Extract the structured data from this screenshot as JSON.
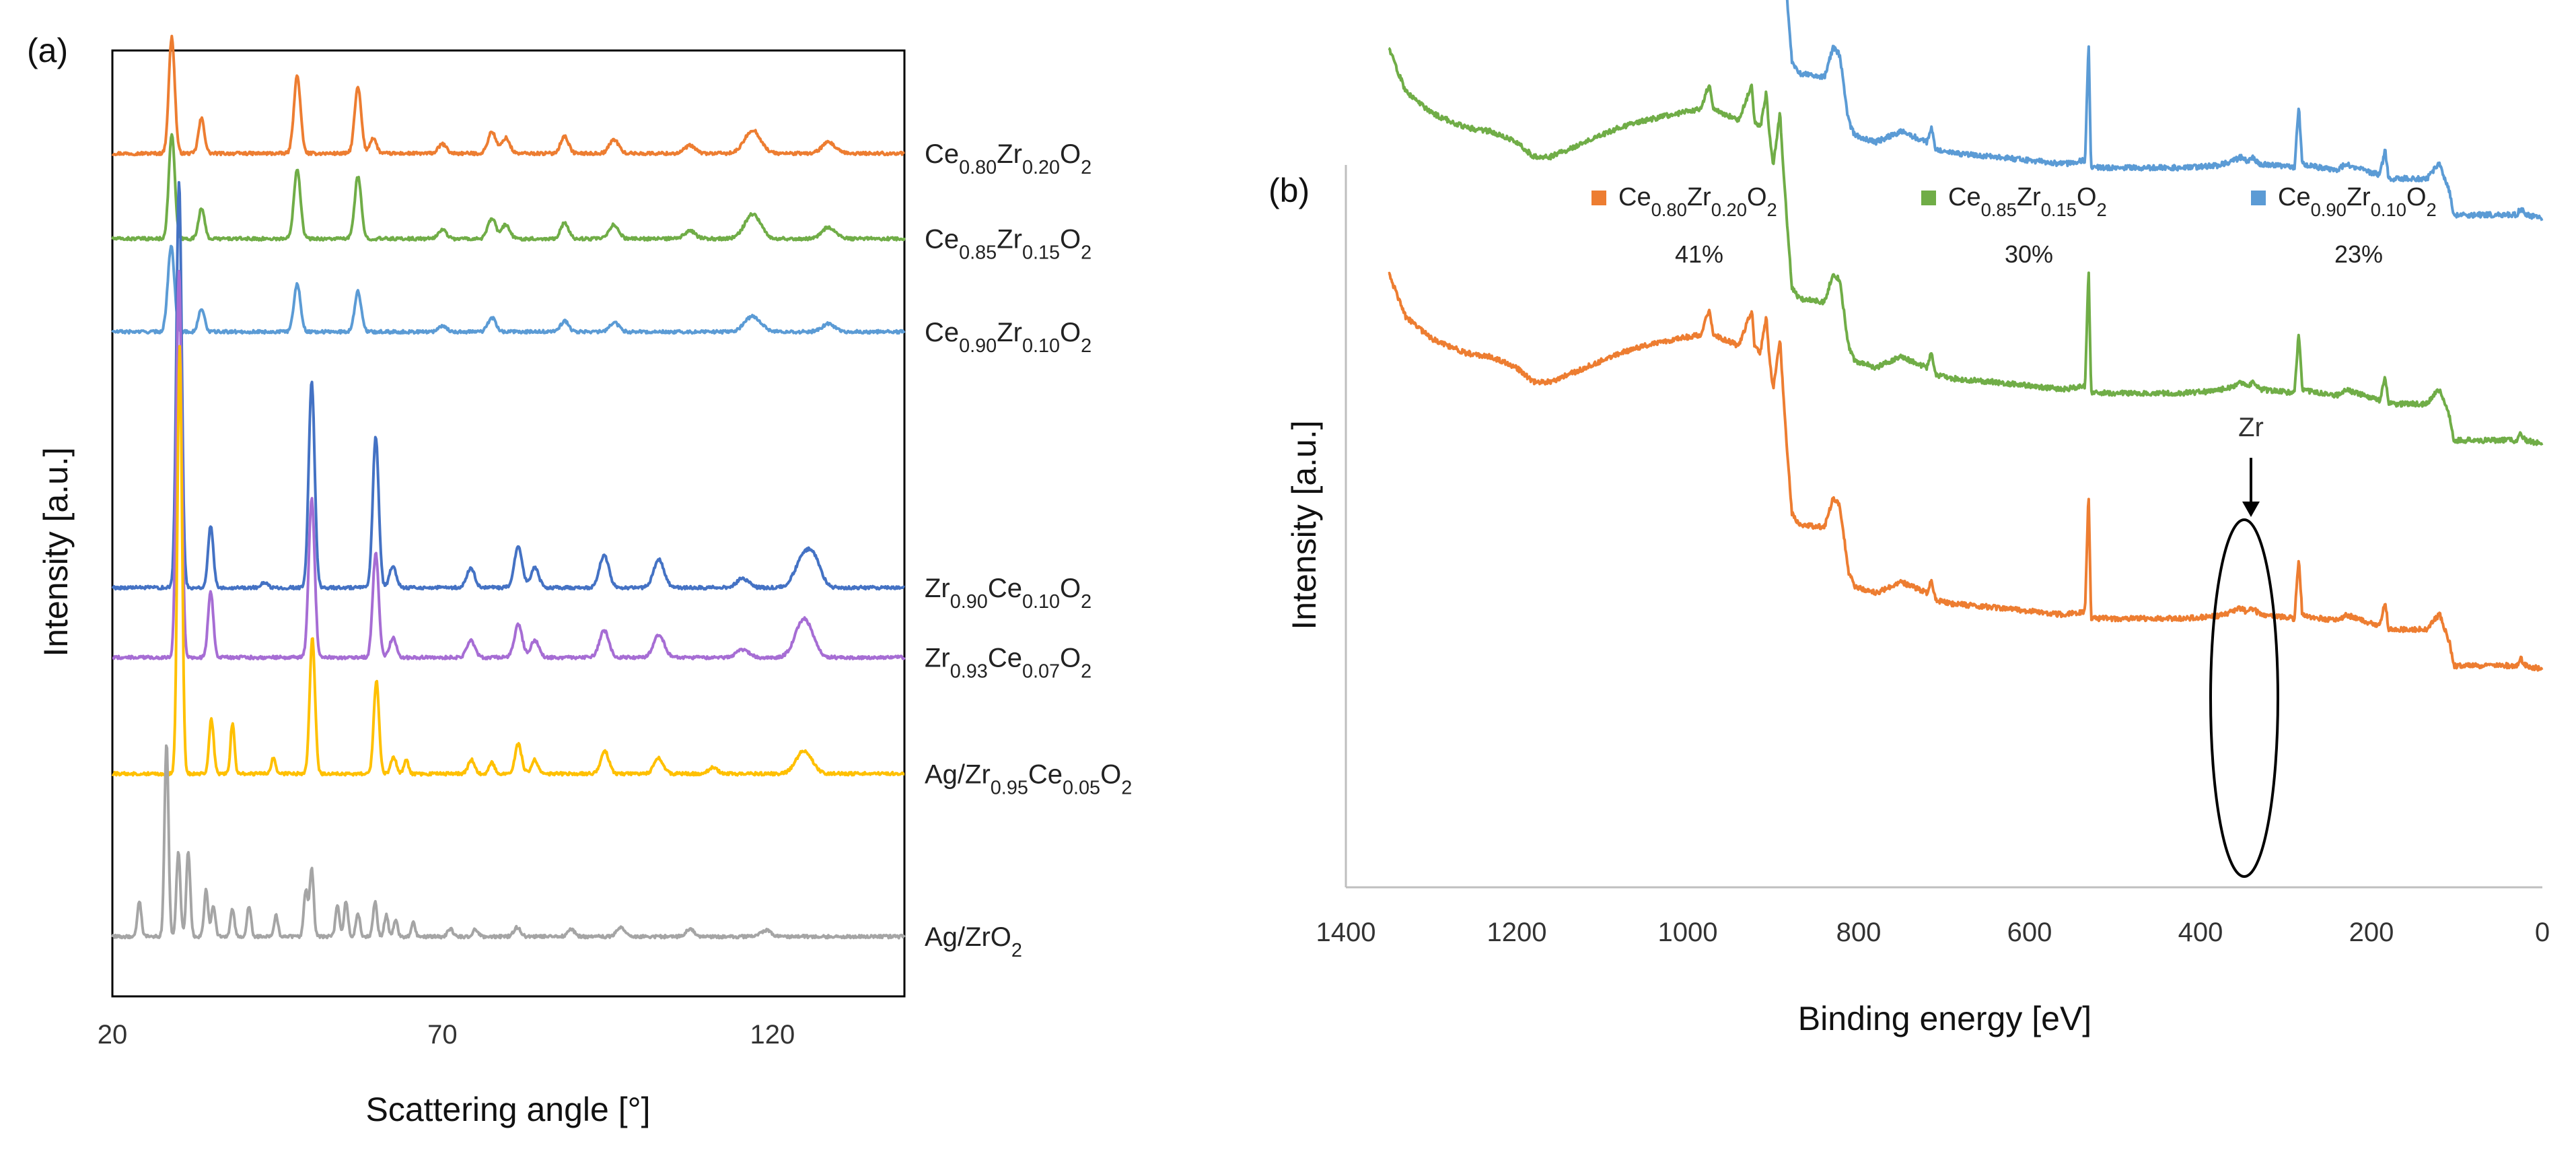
{
  "figure": {
    "panel_a_tag": "(a)",
    "panel_b_tag": "(b)"
  },
  "chart_data": [
    {
      "type": "line",
      "panel": "(a)",
      "title": "",
      "xlabel": "Scattering angle [°]",
      "ylabel": "Intensity [a.u.]",
      "xlim": [
        20,
        140
      ],
      "xticks": [
        "20",
        "70",
        "120"
      ],
      "yticks": [],
      "grid": false,
      "offset_traces": true,
      "series": [
        {
          "name": "Ce0.80Zr0.20O2",
          "label_parts": [
            [
              "Ce",
              ""
            ],
            [
              "0.80",
              "sub"
            ],
            [
              "Zr",
              ""
            ],
            [
              "0.20",
              "sub"
            ],
            [
              "O",
              ""
            ],
            [
              "2",
              "sub"
            ]
          ],
          "color": "#ED7D31",
          "baseline": 0.915,
          "peaks": [
            [
              29.0,
              0.15,
              0.45
            ],
            [
              33.5,
              0.045,
              0.45
            ],
            [
              48.0,
              0.1,
              0.5
            ],
            [
              57.2,
              0.085,
              0.5
            ],
            [
              59.5,
              0.02,
              0.5
            ],
            [
              70.0,
              0.012,
              0.6
            ],
            [
              77.5,
              0.028,
              0.6
            ],
            [
              79.6,
              0.02,
              0.6
            ],
            [
              88.5,
              0.022,
              0.6
            ],
            [
              96.0,
              0.018,
              0.7
            ],
            [
              107.5,
              0.01,
              0.8
            ],
            [
              117.0,
              0.03,
              1.2
            ],
            [
              128.5,
              0.014,
              1.0
            ]
          ]
        },
        {
          "name": "Ce0.85Zr0.15O2",
          "label_parts": [
            [
              "Ce",
              ""
            ],
            [
              "0.85",
              "sub"
            ],
            [
              "Zr",
              ""
            ],
            [
              "0.15",
              "sub"
            ],
            [
              "O",
              ""
            ],
            [
              "2",
              "sub"
            ]
          ],
          "color": "#70AD47",
          "baseline": 0.805,
          "peaks": [
            [
              29.0,
              0.135,
              0.45
            ],
            [
              33.5,
              0.04,
              0.45
            ],
            [
              48.0,
              0.09,
              0.5
            ],
            [
              57.2,
              0.08,
              0.5
            ],
            [
              70.0,
              0.012,
              0.6
            ],
            [
              77.5,
              0.026,
              0.6
            ],
            [
              79.6,
              0.018,
              0.6
            ],
            [
              88.5,
              0.02,
              0.6
            ],
            [
              96.0,
              0.018,
              0.7
            ],
            [
              107.5,
              0.01,
              0.8
            ],
            [
              117.0,
              0.032,
              1.2
            ],
            [
              128.5,
              0.015,
              1.0
            ]
          ]
        },
        {
          "name": "Ce0.90Zr0.10O2",
          "label_parts": [
            [
              "Ce",
              ""
            ],
            [
              "0.90",
              "sub"
            ],
            [
              "Zr",
              ""
            ],
            [
              "0.10",
              "sub"
            ],
            [
              "O",
              ""
            ],
            [
              "2",
              "sub"
            ]
          ],
          "color": "#5B9BD5",
          "baseline": 0.685,
          "peaks": [
            [
              28.9,
              0.11,
              0.5
            ],
            [
              33.5,
              0.03,
              0.45
            ],
            [
              48.0,
              0.062,
              0.5
            ],
            [
              57.2,
              0.052,
              0.5
            ],
            [
              70.0,
              0.008,
              0.6
            ],
            [
              77.5,
              0.018,
              0.6
            ],
            [
              88.5,
              0.014,
              0.6
            ],
            [
              96.0,
              0.012,
              0.7
            ],
            [
              117.0,
              0.02,
              1.2
            ],
            [
              128.5,
              0.01,
              1.0
            ]
          ]
        },
        {
          "name": "Zr0.90Ce0.10O2",
          "label_parts": [
            [
              "Zr",
              ""
            ],
            [
              "0.90",
              "sub"
            ],
            [
              "Ce",
              ""
            ],
            [
              "0.10",
              "sub"
            ],
            [
              "O",
              ""
            ],
            [
              "2",
              "sub"
            ]
          ],
          "color": "#4472C4",
          "baseline": 0.355,
          "peaks": [
            [
              30.1,
              0.525,
              0.4
            ],
            [
              34.9,
              0.08,
              0.4
            ],
            [
              43.0,
              0.006,
              0.5
            ],
            [
              50.2,
              0.265,
              0.45
            ],
            [
              59.9,
              0.195,
              0.45
            ],
            [
              62.5,
              0.028,
              0.5
            ],
            [
              74.3,
              0.025,
              0.6
            ],
            [
              81.5,
              0.052,
              0.6
            ],
            [
              84.0,
              0.026,
              0.6
            ],
            [
              94.5,
              0.042,
              0.7
            ],
            [
              102.8,
              0.036,
              0.8
            ],
            [
              115.5,
              0.012,
              0.9
            ],
            [
              124.8,
              0.04,
              1.3
            ],
            [
              126.5,
              0.025,
              1.0
            ]
          ]
        },
        {
          "name": "Zr0.93Ce0.07O2",
          "label_parts": [
            [
              "Zr",
              ""
            ],
            [
              "0.93",
              "sub"
            ],
            [
              "Ce",
              ""
            ],
            [
              "0.07",
              "sub"
            ],
            [
              "O",
              ""
            ],
            [
              "2",
              "sub"
            ]
          ],
          "color": "#A66DD4",
          "baseline": 0.265,
          "peaks": [
            [
              30.1,
              0.5,
              0.4
            ],
            [
              34.9,
              0.085,
              0.4
            ],
            [
              50.2,
              0.205,
              0.45
            ],
            [
              59.9,
              0.135,
              0.45
            ],
            [
              62.5,
              0.025,
              0.5
            ],
            [
              74.3,
              0.022,
              0.6
            ],
            [
              81.5,
              0.042,
              0.6
            ],
            [
              84.0,
              0.022,
              0.6
            ],
            [
              94.5,
              0.035,
              0.7
            ],
            [
              102.8,
              0.03,
              0.8
            ],
            [
              115.5,
              0.01,
              0.9
            ],
            [
              124.8,
              0.05,
              1.3
            ]
          ]
        },
        {
          "name": "Ag/Zr0.95Ce0.05O2",
          "label_parts": [
            [
              "Ag/Zr",
              ""
            ],
            [
              "0.95",
              "sub"
            ],
            [
              "Ce",
              ""
            ],
            [
              "0.05",
              "sub"
            ],
            [
              "O",
              ""
            ],
            [
              "2",
              "sub"
            ]
          ],
          "color": "#FFC000",
          "baseline": 0.115,
          "peaks": [
            [
              30.2,
              0.55,
              0.35
            ],
            [
              35.0,
              0.07,
              0.35
            ],
            [
              38.2,
              0.065,
              0.3
            ],
            [
              44.4,
              0.02,
              0.35
            ],
            [
              50.3,
              0.175,
              0.4
            ],
            [
              60.0,
              0.12,
              0.4
            ],
            [
              62.6,
              0.022,
              0.4
            ],
            [
              64.5,
              0.018,
              0.35
            ],
            [
              74.4,
              0.018,
              0.5
            ],
            [
              77.5,
              0.014,
              0.4
            ],
            [
              81.5,
              0.038,
              0.5
            ],
            [
              84.0,
              0.018,
              0.5
            ],
            [
              94.6,
              0.03,
              0.6
            ],
            [
              102.8,
              0.02,
              0.7
            ],
            [
              111.0,
              0.008,
              0.7
            ],
            [
              124.8,
              0.03,
              1.2
            ]
          ]
        },
        {
          "name": "Ag/ZrO2",
          "label_parts": [
            [
              "Ag/ZrO",
              ""
            ],
            [
              "2",
              "sub"
            ]
          ],
          "color": "#A5A5A5",
          "baseline": -0.095,
          "peaks": [
            [
              24.1,
              0.045,
              0.3
            ],
            [
              28.2,
              0.25,
              0.3
            ],
            [
              30.0,
              0.11,
              0.3
            ],
            [
              31.5,
              0.11,
              0.3
            ],
            [
              34.2,
              0.06,
              0.3
            ],
            [
              35.3,
              0.04,
              0.3
            ],
            [
              38.2,
              0.035,
              0.3
            ],
            [
              40.7,
              0.04,
              0.3
            ],
            [
              44.8,
              0.028,
              0.3
            ],
            [
              49.3,
              0.06,
              0.3
            ],
            [
              50.2,
              0.088,
              0.3
            ],
            [
              54.1,
              0.04,
              0.3
            ],
            [
              55.4,
              0.045,
              0.3
            ],
            [
              57.2,
              0.03,
              0.3
            ],
            [
              59.8,
              0.045,
              0.3
            ],
            [
              61.5,
              0.028,
              0.3
            ],
            [
              62.9,
              0.022,
              0.3
            ],
            [
              65.6,
              0.018,
              0.3
            ],
            [
              71.2,
              0.01,
              0.4
            ],
            [
              75.0,
              0.009,
              0.4
            ],
            [
              81.3,
              0.012,
              0.5
            ],
            [
              89.5,
              0.01,
              0.5
            ],
            [
              97.0,
              0.012,
              0.6
            ],
            [
              107.5,
              0.01,
              0.6
            ],
            [
              119.0,
              0.008,
              0.8
            ]
          ]
        }
      ]
    },
    {
      "type": "line",
      "panel": "(b)",
      "title": "",
      "xlabel": "Binding energy [eV]",
      "ylabel": "Intensity [a.u.]",
      "xlim": [
        1400,
        0
      ],
      "x_reversed": true,
      "xticks": [
        "1400",
        "1200",
        "1000",
        "800",
        "600",
        "400",
        "200",
        "0"
      ],
      "yticks": [],
      "grid": false,
      "annotation": {
        "text": "Zr",
        "at_x": 340,
        "note": "ellipse with arrow around Zr 3d region"
      },
      "legend": {
        "placement": "top",
        "entries": [
          {
            "label_parts": [
              [
                "Ce",
                ""
              ],
              [
                "0.80",
                "sub"
              ],
              [
                "Zr",
                ""
              ],
              [
                "0.20",
                "sub"
              ],
              [
                "O",
                ""
              ],
              [
                "2",
                "sub"
              ]
            ],
            "color": "#ED7D31",
            "percent": "41%"
          },
          {
            "label_parts": [
              [
                "Ce",
                ""
              ],
              [
                "0.85",
                "sub"
              ],
              [
                "Zr",
                ""
              ],
              [
                "0.15",
                "sub"
              ],
              [
                "O",
                ""
              ],
              [
                "2",
                "sub"
              ]
            ],
            "color": "#70AD47",
            "percent": "30%"
          },
          {
            "label_parts": [
              [
                "Ce",
                ""
              ],
              [
                "0.90",
                "sub"
              ],
              [
                "Zr",
                ""
              ],
              [
                "0.10",
                "sub"
              ],
              [
                "O",
                ""
              ],
              [
                "2",
                "sub"
              ]
            ],
            "color": "#5B9BD5",
            "percent": "23%"
          }
        ]
      },
      "series": [
        {
          "name": "Ce0.90Zr0.10O2",
          "color": "#5B9BD5",
          "offset": 0.62
        },
        {
          "name": "Ce0.85Zr0.15O2",
          "color": "#70AD47",
          "offset": 0.31
        },
        {
          "name": "Ce0.80Zr0.20O2",
          "color": "#ED7D31",
          "offset": 0.0
        }
      ],
      "profile": [
        [
          1350,
          0.93
        ],
        [
          1330,
          0.87
        ],
        [
          1300,
          0.84
        ],
        [
          1260,
          0.82
        ],
        [
          1230,
          0.815
        ],
        [
          1200,
          0.8
        ],
        [
          1180,
          0.78
        ],
        [
          1160,
          0.78
        ],
        [
          1120,
          0.8
        ],
        [
          1080,
          0.82
        ],
        [
          1050,
          0.83
        ],
        [
          1010,
          0.84
        ],
        [
          985,
          0.845
        ],
        [
          975,
          0.88
        ],
        [
          970,
          0.845
        ],
        [
          940,
          0.83
        ],
        [
          925,
          0.88
        ],
        [
          922,
          0.83
        ],
        [
          915,
          0.82
        ],
        [
          908,
          0.87
        ],
        [
          905,
          0.82
        ],
        [
          900,
          0.77
        ],
        [
          892,
          0.84
        ],
        [
          888,
          0.76
        ],
        [
          882,
          0.66
        ],
        [
          878,
          0.6
        ],
        [
          870,
          0.585
        ],
        [
          840,
          0.58
        ],
        [
          830,
          0.62
        ],
        [
          822,
          0.61
        ],
        [
          812,
          0.52
        ],
        [
          805,
          0.5
        ],
        [
          780,
          0.49
        ],
        [
          750,
          0.505
        ],
        [
          720,
          0.49
        ],
        [
          715,
          0.51
        ],
        [
          710,
          0.48
        ],
        [
          690,
          0.475
        ],
        [
          640,
          0.47
        ],
        [
          600,
          0.465
        ],
        [
          560,
          0.46
        ],
        [
          535,
          0.465
        ],
        [
          531,
          0.63
        ],
        [
          528,
          0.455
        ],
        [
          500,
          0.455
        ],
        [
          420,
          0.455
        ],
        [
          380,
          0.458
        ],
        [
          360,
          0.465
        ],
        [
          352,
          0.47
        ],
        [
          345,
          0.462
        ],
        [
          340,
          0.47
        ],
        [
          330,
          0.46
        ],
        [
          290,
          0.455
        ],
        [
          285,
          0.54
        ],
        [
          281,
          0.46
        ],
        [
          260,
          0.455
        ],
        [
          240,
          0.452
        ],
        [
          230,
          0.46
        ],
        [
          205,
          0.45
        ],
        [
          190,
          0.445
        ],
        [
          184,
          0.48
        ],
        [
          180,
          0.44
        ],
        [
          160,
          0.44
        ],
        [
          135,
          0.44
        ],
        [
          125,
          0.455
        ],
        [
          120,
          0.46
        ],
        [
          114,
          0.44
        ],
        [
          108,
          0.42
        ],
        [
          104,
          0.39
        ],
        [
          100,
          0.39
        ],
        [
          30,
          0.39
        ],
        [
          25,
          0.4
        ],
        [
          20,
          0.39
        ],
        [
          0,
          0.385
        ]
      ]
    }
  ]
}
